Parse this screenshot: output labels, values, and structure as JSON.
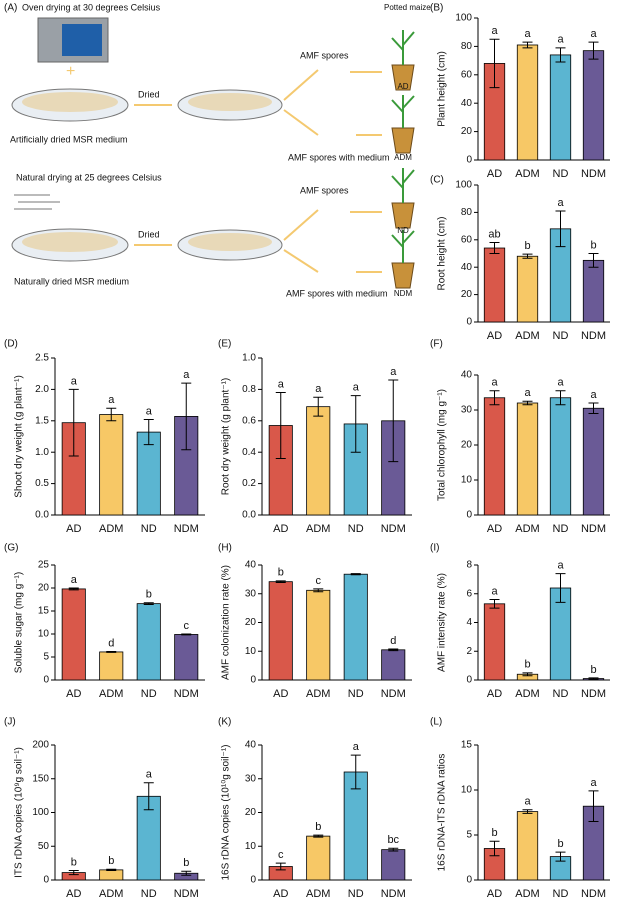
{
  "diagram": {
    "label": "(A)",
    "potted_maize": "Potted maize",
    "top": {
      "drying": "Oven drying at 30 degrees Celsius",
      "arrow": "Dried",
      "medium": "Artificially dried MSR medium",
      "spores": "AMF spores",
      "spores_medium": "AMF spores with medium",
      "pot1": "AD",
      "pot2": "ADM"
    },
    "bottom": {
      "drying": "Natural drying at 25 degrees Celsius",
      "arrow": "Dried",
      "medium": "Naturally dried MSR medium",
      "spores": "AMF spores",
      "spores_medium": "AMF spores with medium",
      "pot1": "ND",
      "pot2": "NDM"
    }
  },
  "chart_data": [
    {
      "type": "bar",
      "label": "(B)",
      "ylabel": "Plant height (cm)",
      "categories": [
        "AD",
        "ADM",
        "ND",
        "NDM"
      ],
      "colors": [
        "#d9584a",
        "#f7c866",
        "#5bb5d1",
        "#6a5a96"
      ],
      "values": [
        68,
        81,
        74,
        77
      ],
      "errors": [
        17,
        2,
        5,
        6
      ],
      "letters": [
        "a",
        "a",
        "a",
        "a"
      ],
      "ylim": [
        0,
        100
      ],
      "yticks": [
        0,
        20,
        40,
        60,
        80,
        100
      ]
    },
    {
      "type": "bar",
      "label": "(C)",
      "ylabel": "Root height (cm)",
      "categories": [
        "AD",
        "ADM",
        "ND",
        "NDM"
      ],
      "colors": [
        "#d9584a",
        "#f7c866",
        "#5bb5d1",
        "#6a5a96"
      ],
      "values": [
        54,
        48,
        68,
        45
      ],
      "errors": [
        4,
        1.5,
        13,
        5
      ],
      "letters": [
        "ab",
        "b",
        "a",
        "b"
      ],
      "ylim": [
        0,
        100
      ],
      "yticks": [
        0,
        20,
        40,
        60,
        80,
        100
      ]
    },
    {
      "type": "bar",
      "label": "(D)",
      "ylabel": "Shoot dry weight (g plant⁻¹)",
      "categories": [
        "AD",
        "ADM",
        "ND",
        "NDM"
      ],
      "colors": [
        "#d9584a",
        "#f7c866",
        "#5bb5d1",
        "#6a5a96"
      ],
      "values": [
        1.47,
        1.6,
        1.32,
        1.57
      ],
      "errors": [
        0.53,
        0.1,
        0.2,
        0.53
      ],
      "letters": [
        "a",
        "a",
        "a",
        "a"
      ],
      "ylim": [
        0,
        2.5
      ],
      "yticks": [
        {
          "value": 0,
          "label": "0.0"
        },
        0.5,
        {
          "value": 1,
          "label": "1.0"
        },
        1.5,
        {
          "value": 2,
          "label": "2.0"
        },
        2.5
      ]
    },
    {
      "type": "bar",
      "label": "(E)",
      "ylabel": "Root dry weight (g plant⁻¹)",
      "categories": [
        "AD",
        "ADM",
        "ND",
        "NDM"
      ],
      "colors": [
        "#d9584a",
        "#f7c866",
        "#5bb5d1",
        "#6a5a96"
      ],
      "values": [
        0.57,
        0.69,
        0.58,
        0.6
      ],
      "errors": [
        0.21,
        0.06,
        0.18,
        0.26
      ],
      "letters": [
        "a",
        "a",
        "a",
        "a"
      ],
      "ylim": [
        0,
        1
      ],
      "yticks": [
        {
          "value": 0,
          "label": "0.0"
        },
        0.2,
        0.4,
        0.6,
        0.8,
        {
          "value": 1,
          "label": "1.0"
        }
      ]
    },
    {
      "type": "bar",
      "label": "(F)",
      "ylabel": "Total chlorophyll (mg g⁻¹)",
      "categories": [
        "AD",
        "ADM",
        "ND",
        "NDM"
      ],
      "colors": [
        "#d9584a",
        "#f7c866",
        "#5bb5d1",
        "#6a5a96"
      ],
      "values": [
        33.5,
        32,
        33.5,
        30.5
      ],
      "errors": [
        2,
        0.5,
        2,
        1.5
      ],
      "letters": [
        "a",
        "a",
        "a",
        "a"
      ],
      "ylim": [
        0,
        40
      ],
      "yticks": [
        0,
        10,
        20,
        30,
        40
      ]
    },
    {
      "type": "bar",
      "label": "(G)",
      "ylabel": "Soluble sugar (mg g⁻¹)",
      "categories": [
        "AD",
        "ADM",
        "ND",
        "NDM"
      ],
      "colors": [
        "#d9584a",
        "#f7c866",
        "#5bb5d1",
        "#6a5a96"
      ],
      "values": [
        19.8,
        6.1,
        16.6,
        9.9
      ],
      "errors": [
        0.2,
        0.1,
        0.2,
        0.1
      ],
      "letters": [
        "a",
        "d",
        "b",
        "c"
      ],
      "ylim": [
        0,
        25
      ],
      "yticks": [
        0,
        5,
        10,
        15,
        20,
        25
      ]
    },
    {
      "type": "bar",
      "label": "(H)",
      "ylabel": "AMF colonization rate (%)",
      "categories": [
        "AD",
        "ADM",
        "ND",
        "NDM"
      ],
      "colors": [
        "#d9584a",
        "#f7c866",
        "#5bb5d1",
        "#6a5a96"
      ],
      "values": [
        34.2,
        31.2,
        36.8,
        10.5
      ],
      "errors": [
        0.3,
        0.5,
        0.2,
        0.3
      ],
      "letters": [
        "b",
        "c",
        null,
        "d"
      ],
      "ylim": [
        0,
        40
      ],
      "yticks": [
        0,
        10,
        20,
        30,
        40
      ]
    },
    {
      "type": "bar",
      "label": "(I)",
      "ylabel": "AMF intensity rate (%)",
      "categories": [
        "AD",
        "ADM",
        "ND",
        "NDM"
      ],
      "colors": [
        "#d9584a",
        "#f7c866",
        "#5bb5d1",
        "#6a5a96"
      ],
      "values": [
        5.3,
        0.4,
        6.4,
        0.1
      ],
      "errors": [
        0.3,
        0.1,
        1,
        0.05
      ],
      "letters": [
        "a",
        "b",
        "a",
        "b"
      ],
      "ylim": [
        0,
        8
      ],
      "yticks": [
        0,
        2,
        4,
        6,
        8
      ]
    },
    {
      "type": "bar",
      "label": "(J)",
      "ylabel": "ITS rDNA copies (10⁹g soil⁻¹)",
      "categories": [
        "AD",
        "ADM",
        "ND",
        "NDM"
      ],
      "colors": [
        "#d9584a",
        "#f7c866",
        "#5bb5d1",
        "#6a5a96"
      ],
      "values": [
        11,
        15,
        124,
        10
      ],
      "errors": [
        3,
        1,
        20,
        3
      ],
      "letters": [
        "b",
        "b",
        "a",
        "b"
      ],
      "ylim": [
        0,
        200
      ],
      "yticks": [
        0,
        50,
        100,
        150,
        200
      ]
    },
    {
      "type": "bar",
      "label": "(K)",
      "ylabel": "16S rDNA copies (10¹⁰g soil⁻¹)",
      "categories": [
        "AD",
        "ADM",
        "ND",
        "NDM"
      ],
      "colors": [
        "#d9584a",
        "#f7c866",
        "#5bb5d1",
        "#6a5a96"
      ],
      "values": [
        4,
        13,
        32,
        9
      ],
      "errors": [
        1,
        0.3,
        5,
        0.4
      ],
      "letters": [
        "c",
        "b",
        "a",
        "bc"
      ],
      "ylim": [
        0,
        40
      ],
      "yticks": [
        0,
        10,
        20,
        30,
        40
      ]
    },
    {
      "type": "bar",
      "label": "(L)",
      "ylabel": "16S rDNA-ITS rDNA ratios",
      "categories": [
        "AD",
        "ADM",
        "ND",
        "NDM"
      ],
      "colors": [
        "#d9584a",
        "#f7c866",
        "#5bb5d1",
        "#6a5a96"
      ],
      "values": [
        3.5,
        7.6,
        2.6,
        8.2
      ],
      "errors": [
        0.8,
        0.2,
        0.5,
        1.7
      ],
      "letters": [
        "b",
        "a",
        "b",
        "a"
      ],
      "ylim": [
        0,
        15
      ],
      "yticks": [
        0,
        5,
        10,
        15
      ]
    }
  ]
}
